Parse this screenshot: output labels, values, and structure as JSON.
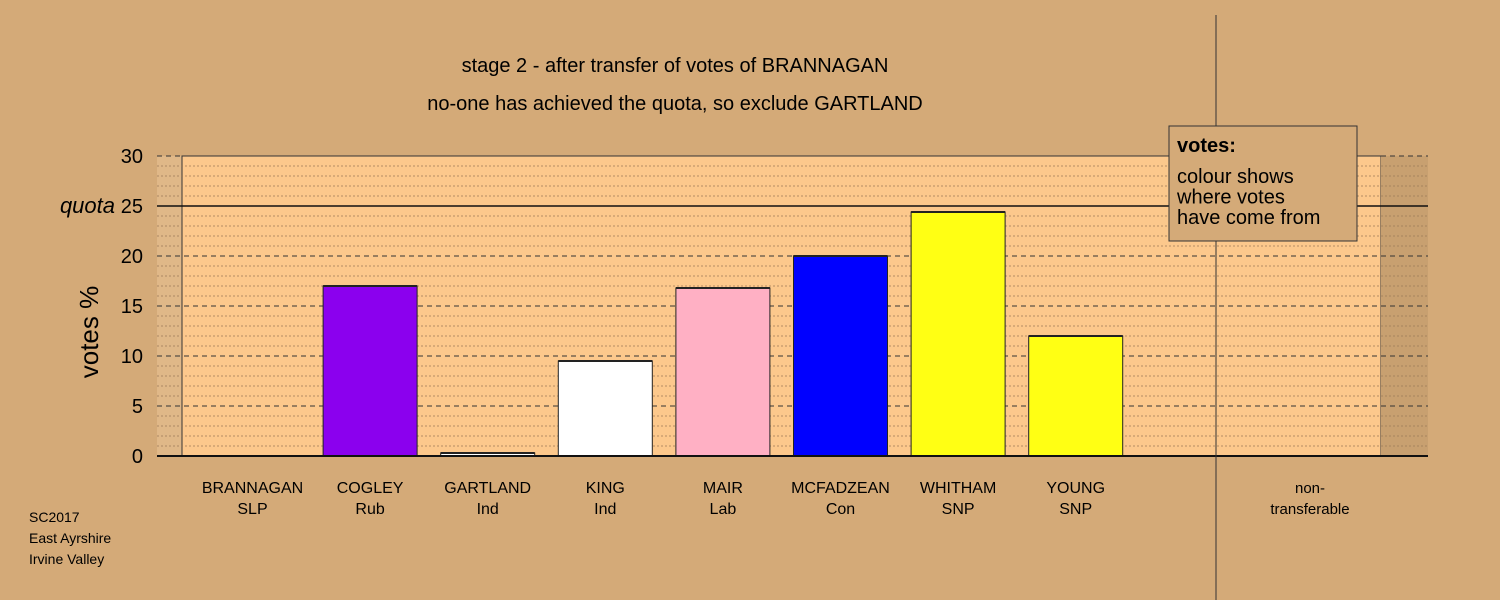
{
  "chart_data": {
    "type": "bar",
    "title": "stage 2 - after transfer of votes of BRANNAGAN",
    "subtitle": "no-one has achieved the quota, so exclude GARTLAND",
    "ylabel": "votes %",
    "ylim": [
      0,
      30
    ],
    "yticks": [
      0,
      5,
      10,
      15,
      20,
      25,
      30
    ],
    "quota": 25,
    "quota_label": "quota",
    "grid": true,
    "categories": [
      {
        "name": "BRANNAGAN",
        "party": "SLP",
        "value": 0.0,
        "color": "#d4aa78"
      },
      {
        "name": "COGLEY",
        "party": "Rub",
        "value": 17.0,
        "color": "#8b00ee"
      },
      {
        "name": "GARTLAND",
        "party": "Ind",
        "value": 0.3,
        "color": "#ffffff"
      },
      {
        "name": "KING",
        "party": "Ind",
        "value": 9.5,
        "color": "#ffffff"
      },
      {
        "name": "MAIR",
        "party": "Lab",
        "value": 16.8,
        "color": "#ffb0c4"
      },
      {
        "name": "MCFADZEAN",
        "party": "Con",
        "value": 20.0,
        "color": "#0000ff"
      },
      {
        "name": "WHITHAM",
        "party": "SNP",
        "value": 24.4,
        "color": "#ffff14"
      },
      {
        "name": "YOUNG",
        "party": "SNP",
        "value": 12.0,
        "color": "#ffff14"
      }
    ],
    "non_transferable": {
      "name": "non-",
      "party": "transferable",
      "value": 0.0
    },
    "legend": {
      "title": "votes:",
      "lines": [
        "colour shows",
        "where votes",
        "have come from"
      ],
      "placement": "top-right"
    }
  },
  "footer": {
    "line1": "SC2017",
    "line2": "East Ayrshire",
    "line3": "Irvine Valley"
  }
}
